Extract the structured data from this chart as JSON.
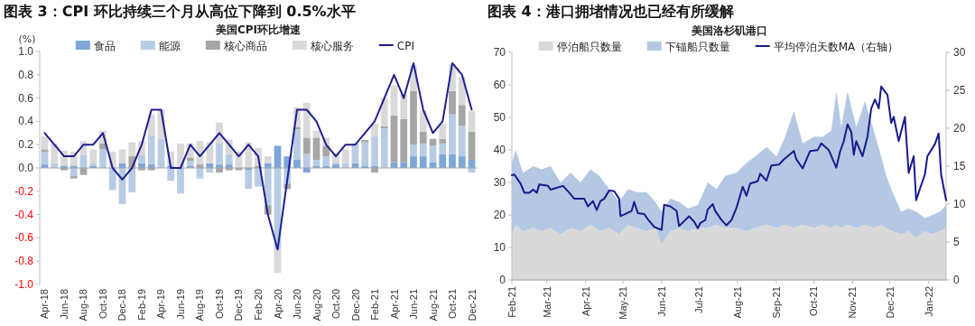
{
  "chart_data": [
    {
      "type": "bar",
      "title": "图表 3：CPI 环比持续三个月从高位下降到 0.5%水平",
      "subtitle": "美国CPI环比增速",
      "ylabel": "(%)",
      "stacked": true,
      "legend": "top",
      "ylim": [
        -1,
        1
      ],
      "yticks": [
        {
          "value": -1,
          "label": "-1.0"
        },
        -0.8,
        -0.6,
        -0.4,
        -0.2,
        {
          "value": 0,
          "label": "0.0"
        },
        0.2,
        0.4,
        0.6,
        0.8,
        {
          "value": 1,
          "label": "1.0"
        }
      ],
      "categories": [
        "Apr-18",
        null,
        "Jun-18",
        null,
        "Aug-18",
        null,
        "Oct-18",
        null,
        "Dec-18",
        null,
        "Feb-19",
        null,
        "Apr-19",
        null,
        "Jun-19",
        null,
        "Aug-19",
        null,
        "Oct-19",
        null,
        "Dec-19",
        null,
        "Feb-20",
        null,
        "Apr-20",
        null,
        "Jun-20",
        null,
        "Aug-20",
        null,
        "Oct-20",
        null,
        "Dec-20",
        null,
        "Feb-21",
        null,
        "Apr-21",
        null,
        "Jun-21",
        null,
        "Aug-21",
        null,
        "Oct-21",
        null,
        "Dec-21"
      ],
      "series": [
        {
          "name": "食品",
          "color": "#7ea6d8",
          "values": [
            0.03,
            0,
            0.02,
            0.02,
            0,
            0.02,
            0,
            0,
            0.04,
            0,
            0.04,
            0.03,
            0,
            0.02,
            0,
            0.02,
            0,
            0.04,
            0.03,
            0.03,
            0,
            -0.02,
            0,
            0.04,
            0.19,
            0.1,
            0.07,
            -0.04,
            0.02,
            0.02,
            0.03,
            0,
            0.04,
            0.02,
            0.02,
            0,
            0.05,
            0.05,
            0.1,
            0.1,
            0.05,
            0.12,
            0.12,
            0.1,
            0.07
          ]
        },
        {
          "name": "能源",
          "color": "#b8cce4",
          "values": [
            0.11,
            0.04,
            0,
            -0.07,
            0.11,
            0.02,
            0.16,
            -0.19,
            -0.31,
            -0.21,
            0.07,
            0.25,
            0.25,
            -0.11,
            -0.22,
            0.04,
            -0.09,
            -0.04,
            0.18,
            0.09,
            0,
            -0.16,
            -0.16,
            -0.32,
            -0.7,
            -0.14,
            0.26,
            0.12,
            0.05,
            0.08,
            0.02,
            0.04,
            0.17,
            0.2,
            0.25,
            0.34,
            0,
            0,
            0.1,
            0.11,
            0.14,
            0.09,
            0.34,
            0.26,
            -0.04
          ]
        },
        {
          "name": "核心商品",
          "color": "#a6a6a6",
          "values": [
            0.02,
            0,
            -0.02,
            -0.02,
            -0.06,
            0,
            0.05,
            0,
            0,
            0.1,
            -0.02,
            -0.02,
            0,
            0,
            0,
            0.03,
            0.03,
            0,
            -0.04,
            -0.02,
            -0.02,
            0,
            0.02,
            -0.08,
            0,
            -0.04,
            0.02,
            0.14,
            0.19,
            0.09,
            0,
            0,
            0,
            0.02,
            -0.04,
            0.02,
            0.4,
            0.37,
            0.46,
            0.1,
            0.06,
            0.04,
            0.2,
            0.18,
            0.24
          ]
        },
        {
          "name": "核心服务",
          "color": "#d9d9d9",
          "values": [
            0.11,
            0.17,
            0.13,
            0.12,
            0.12,
            0.12,
            0.11,
            0.14,
            0.12,
            0.12,
            0.12,
            0.18,
            0.25,
            0.12,
            0.21,
            0.12,
            0.2,
            0.18,
            0.18,
            0.12,
            0.14,
            0.22,
            0.15,
            0.06,
            -0.2,
            0,
            0.17,
            0.3,
            0.06,
            0.07,
            0.08,
            0.12,
            0,
            0,
            0.11,
            0.24,
            0.26,
            0.21,
            0.22,
            0.18,
            0,
            0.13,
            0.23,
            0.24,
            0.18
          ]
        },
        {
          "name": "CPI",
          "type": "line",
          "color": "#1f1f8f",
          "values": [
            0.3,
            0.2,
            0.1,
            0.1,
            0.2,
            0.2,
            0.3,
            0,
            -0.1,
            0,
            0.2,
            0.5,
            0.5,
            0,
            0,
            0.2,
            0.1,
            0.2,
            0.3,
            0.2,
            0.1,
            0.2,
            0.1,
            -0.4,
            -0.7,
            -0.1,
            0.5,
            0.5,
            0.4,
            0.2,
            0.1,
            0.2,
            0.2,
            0.3,
            0.4,
            0.6,
            0.8,
            0.6,
            0.9,
            0.5,
            0.3,
            0.4,
            0.9,
            0.8,
            0.5
          ]
        }
      ]
    },
    {
      "type": "area",
      "title": "图表 4：港口拥堵情况也已经有所缓解",
      "subtitle": "美国洛杉矶港口",
      "stacked": true,
      "legend": "top",
      "ylim": [
        0,
        70
      ],
      "yticks": [
        0,
        10,
        20,
        30,
        40,
        50,
        60,
        70
      ],
      "y2lim": [
        0,
        30
      ],
      "y2ticks": [
        0,
        5,
        10,
        15,
        20,
        25,
        30
      ],
      "xlim": [
        "2021-02-01",
        "2022-01-15"
      ],
      "xticks": [
        {
          "value": "2021-02-01",
          "label": "Feb-21"
        },
        {
          "value": "2021-03-01",
          "label": "Mar-21"
        },
        {
          "value": "2021-04-01",
          "label": "Apr-21"
        },
        {
          "value": "2021-05-01",
          "label": "May-21"
        },
        {
          "value": "2021-06-01",
          "label": "Jun-21"
        },
        {
          "value": "2021-07-01",
          "label": "Jul-21"
        },
        {
          "value": "2021-08-01",
          "label": "Aug-21"
        },
        {
          "value": "2021-09-01",
          "label": "Sep-21"
        },
        {
          "value": "2021-10-01",
          "label": "Oct-21"
        },
        {
          "value": "2021-11-01",
          "label": "Nov-21"
        },
        {
          "value": "2021-12-01",
          "label": "Dec-21"
        },
        {
          "value": "2022-01-01",
          "label": "Jan-22"
        }
      ],
      "x": [
        "2021-02-01",
        "2021-02-04",
        "2021-02-10",
        "2021-02-18",
        "2021-02-25",
        "2021-03-04",
        "2021-03-12",
        "2021-03-20",
        "2021-03-28",
        "2021-04-05",
        "2021-04-12",
        "2021-04-20",
        "2021-04-28",
        "2021-05-05",
        "2021-05-12",
        "2021-05-20",
        "2021-05-27",
        "2021-06-01",
        "2021-06-08",
        "2021-06-15",
        "2021-06-22",
        "2021-06-30",
        "2021-07-08",
        "2021-07-15",
        "2021-07-22",
        "2021-07-31",
        "2021-08-08",
        "2021-08-15",
        "2021-08-24",
        "2021-09-01",
        "2021-09-08",
        "2021-09-15",
        "2021-09-22",
        "2021-10-01",
        "2021-10-08",
        "2021-10-15",
        "2021-10-19",
        "2021-10-23",
        "2021-10-28",
        "2021-11-04",
        "2021-11-11",
        "2021-11-18",
        "2021-11-24",
        "2021-11-28",
        "2021-12-03",
        "2021-12-10",
        "2021-12-16",
        "2021-12-22",
        "2021-12-29",
        "2022-01-04",
        "2022-01-10",
        "2022-01-15"
      ],
      "series": [
        {
          "name": "停泊船只数量",
          "color": "#d9d9d9",
          "values": [
            14,
            17,
            15,
            16,
            15,
            16,
            14,
            16,
            15,
            17,
            15,
            16,
            14,
            17,
            16,
            15,
            16,
            11,
            15,
            16,
            15,
            16,
            16,
            17,
            16,
            16,
            15,
            16,
            17,
            16,
            17,
            16,
            17,
            16,
            17,
            16,
            17,
            16,
            17,
            16,
            17,
            16,
            17,
            16,
            15,
            14,
            15,
            13,
            15,
            14,
            15,
            16
          ]
        },
        {
          "name": "下锚船只数量",
          "color": "#b4c8e4",
          "values": [
            22,
            23,
            18,
            19,
            19,
            19,
            16,
            17,
            15,
            17,
            17,
            12,
            10,
            11,
            11,
            12,
            8,
            10,
            10,
            8,
            7,
            7,
            14,
            11,
            16,
            17,
            21,
            22,
            24,
            22,
            27,
            36,
            25,
            28,
            27,
            30,
            41,
            31,
            41,
            31,
            38,
            30,
            21,
            16,
            12,
            7,
            7,
            8,
            4,
            6,
            6,
            7
          ]
        },
        {
          "name": "平均停泊天数MA（右轴）",
          "type": "line",
          "axis": "y2",
          "color": "#1a1a8c",
          "x": [
            "2021-02-01",
            "2021-02-03",
            "2021-02-08",
            "2021-02-11",
            "2021-02-15",
            "2021-02-18",
            "2021-02-21",
            "2021-02-23",
            "2021-03-02",
            "2021-03-04",
            "2021-03-14",
            "2021-03-19",
            "2021-03-23",
            "2021-03-31",
            "2021-04-03",
            "2021-04-07",
            "2021-04-10",
            "2021-04-13",
            "2021-04-16",
            "2021-04-20",
            "2021-04-24",
            "2021-04-28",
            "2021-04-29",
            "2021-05-03",
            "2021-05-08",
            "2021-05-10",
            "2021-05-13",
            "2021-05-18",
            "2021-05-21",
            "2021-05-26",
            "2021-06-01",
            "2021-06-03",
            "2021-06-08",
            "2021-06-13",
            "2021-06-15",
            "2021-06-23",
            "2021-06-27",
            "2021-06-30",
            "2021-07-02",
            "2021-07-06",
            "2021-07-08",
            "2021-07-12",
            "2021-07-14",
            "2021-07-19",
            "2021-07-23",
            "2021-07-27",
            "2021-07-31",
            "2021-08-05",
            "2021-08-08",
            "2021-08-11",
            "2021-08-17",
            "2021-08-19",
            "2021-08-24",
            "2021-08-28",
            "2021-09-03",
            "2021-09-07",
            "2021-09-15",
            "2021-09-17",
            "2021-09-22",
            "2021-09-28",
            "2021-10-04",
            "2021-10-07",
            "2021-10-13",
            "2021-10-19",
            "2021-10-22",
            "2021-10-25",
            "2021-10-28",
            "2021-10-31",
            "2021-11-02",
            "2021-11-04",
            "2021-11-09",
            "2021-11-13",
            "2021-11-16",
            "2021-11-19",
            "2021-11-22",
            "2021-11-24",
            "2021-11-29",
            "2021-12-02",
            "2021-12-04",
            "2021-12-08",
            "2021-12-13",
            "2021-12-16",
            "2021-12-20",
            "2021-12-22",
            "2021-12-26",
            "2021-12-29",
            "2021-12-31",
            "2022-01-03",
            "2022-01-06",
            "2022-01-09",
            "2022-01-11",
            "2022-01-15"
          ],
          "values": [
            13.8,
            13.9,
            12.7,
            11.5,
            11.5,
            11.9,
            11.5,
            12.6,
            12.4,
            11.9,
            12.4,
            11.5,
            10.7,
            10.7,
            9.7,
            10.4,
            9.2,
            10.4,
            10.7,
            11.8,
            11.7,
            10.7,
            8.4,
            8.7,
            9.1,
            10.3,
            8.8,
            8.7,
            8.0,
            7.0,
            6.6,
            9.9,
            9.7,
            9.1,
            7.1,
            8.4,
            7.7,
            6.8,
            7.5,
            7.9,
            9.3,
            10.0,
            9.1,
            7.9,
            7.2,
            7.9,
            9.5,
            12.3,
            11.1,
            12.7,
            13.0,
            14.0,
            13.1,
            15.1,
            15.2,
            15.9,
            17.0,
            15.9,
            14.7,
            17.0,
            17.1,
            18.0,
            17.1,
            14.8,
            16.9,
            18.3,
            20.5,
            19.5,
            16.5,
            18.3,
            16.3,
            18.9,
            22.6,
            23.8,
            22.6,
            25.5,
            24.4,
            20.7,
            21.5,
            18.3,
            21.5,
            14.1,
            16.3,
            10.5,
            12.5,
            13.9,
            16.3,
            17.1,
            17.9,
            19.3,
            13.9,
            10.5
          ]
        }
      ]
    }
  ]
}
